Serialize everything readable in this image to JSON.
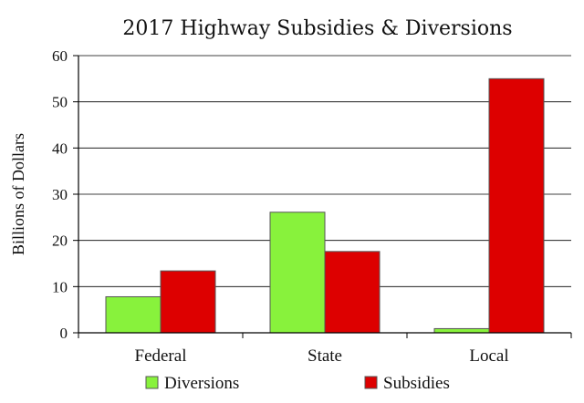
{
  "chart_data": {
    "type": "bar",
    "title": "2017 Highway Subsidies & Diversions",
    "xlabel": "",
    "ylabel": "Billions of Dollars",
    "categories": [
      "Federal",
      "State",
      "Local"
    ],
    "series": [
      {
        "name": "Diversions",
        "color": "#88f23c",
        "values": [
          7.8,
          26.1,
          0.9
        ]
      },
      {
        "name": "Subsidies",
        "color": "#dd0000",
        "values": [
          13.4,
          17.6,
          55.0
        ]
      }
    ],
    "ylim": [
      0,
      60
    ],
    "yticks": [
      "0",
      "10",
      "20",
      "30",
      "40",
      "50",
      "60"
    ],
    "grid": true,
    "legend": "bottom"
  }
}
